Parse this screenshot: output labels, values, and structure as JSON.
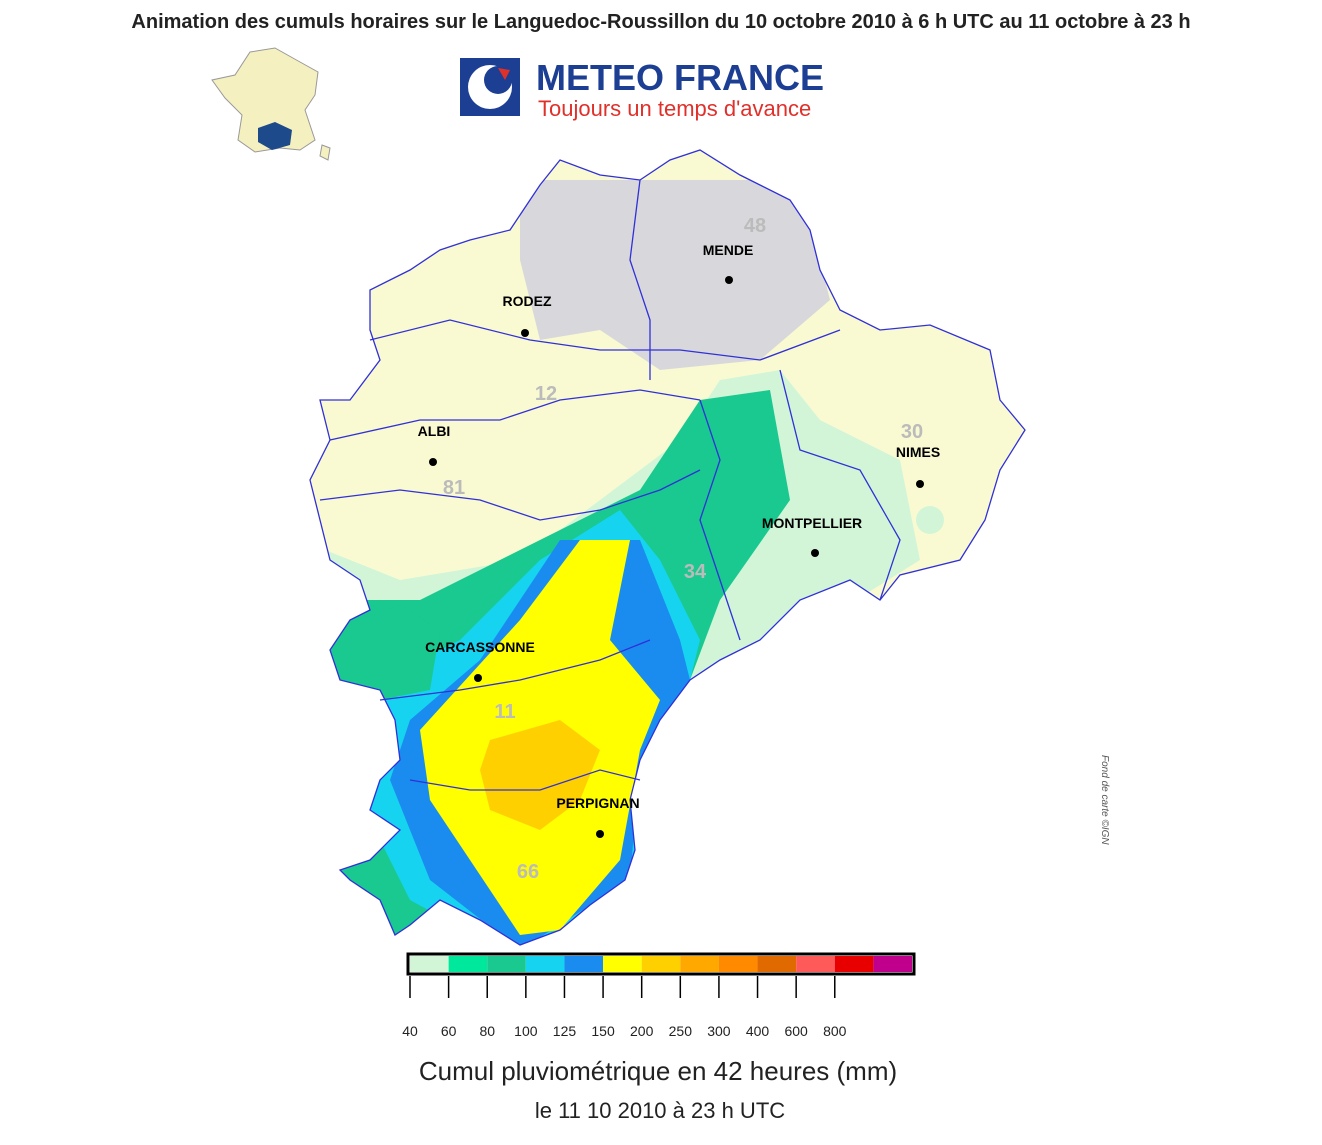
{
  "title": "Animation des cumuls horaires sur le Languedoc-Roussillon du 10 octobre 2010 à 6 h UTC au 11 octobre à 23 h",
  "logo": {
    "name": "METEO FRANCE",
    "slogan": "Toujours un temps d'avance"
  },
  "map": {
    "cities": [
      "MENDE",
      "RODEZ",
      "ALBI",
      "NIMES",
      "MONTPELLIER",
      "CARCASSONNE",
      "PERPIGNAN"
    ],
    "departments": [
      "48",
      "12",
      "81",
      "30",
      "34",
      "11",
      "66"
    ],
    "credit": "Fond de carte ©IGN"
  },
  "legend": {
    "colors": [
      "#d2f5d8",
      "#00e89c",
      "#19c98f",
      "#16d4f0",
      "#1a8cf0",
      "#ffff00",
      "#ffd000",
      "#ffa800",
      "#ff8a00",
      "#e06a00",
      "#ff5a5a",
      "#e80000",
      "#c0008c"
    ],
    "ticks": [
      40,
      60,
      80,
      100,
      125,
      150,
      200,
      250,
      300,
      400,
      600,
      800
    ],
    "title": "Cumul pluviométrique en 42 heures (mm)",
    "date": "le 11 10 2010 à 23 h UTC"
  }
}
